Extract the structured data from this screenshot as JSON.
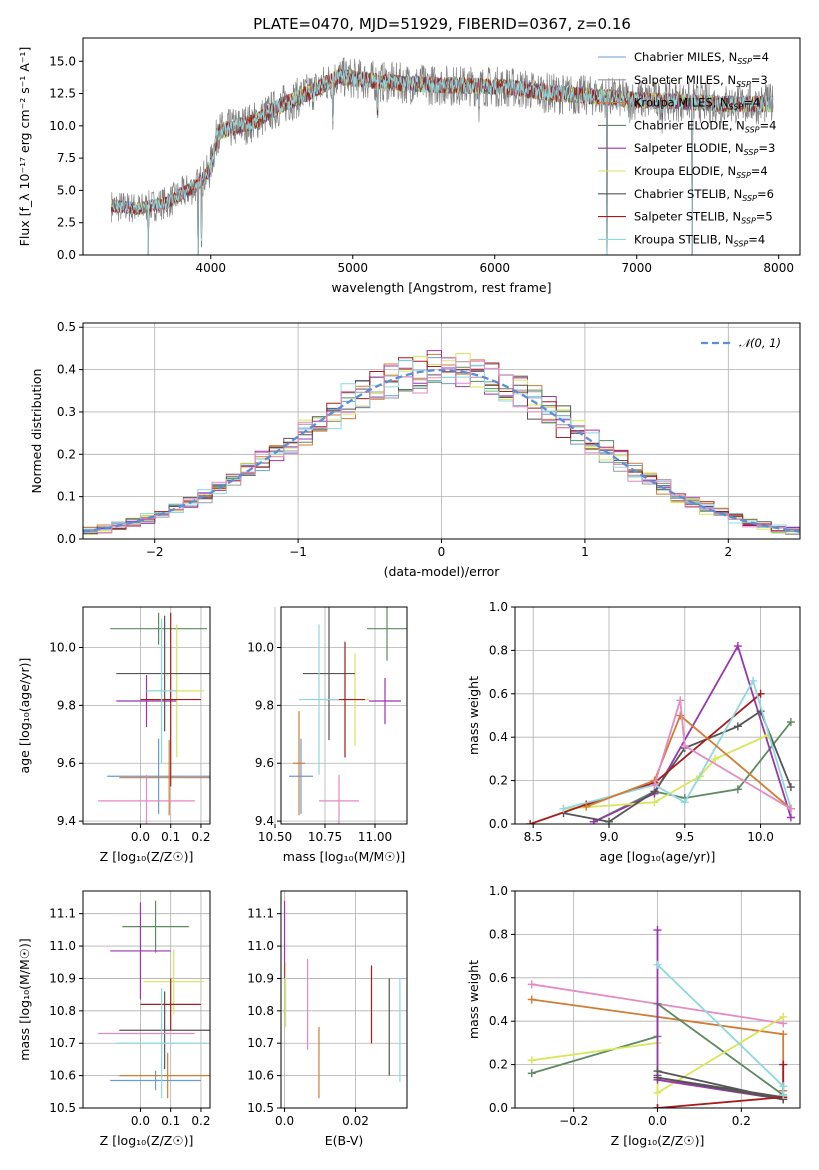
{
  "figure": {
    "title": "PLATE=0470, MJD=51929, FIBERID=0367, z=0.16"
  },
  "colors": {
    "chabrier_miles": "#6a9bd1",
    "salpeter_miles": "#999999",
    "kroupa_miles": "#d17c35",
    "chabrier_elodie": "#5d8a60",
    "salpeter_elodie": "#9a35b0",
    "kroupa_elodie": "#d8e65a",
    "chabrier_stelib": "#555555",
    "salpeter_stelib": "#a71c1c",
    "kroupa_stelib": "#8fd8e0",
    "pink_model": "#e48ac4",
    "gaussian": "#5b8dd9",
    "data": "#808080"
  },
  "legend_spectrum": [
    {
      "label": "Chabrier MILES, N",
      "sub": "SSP",
      "suffix": "=4",
      "color": "#6a9bd1"
    },
    {
      "label": "Salpeter MILES, N",
      "sub": "SSP",
      "suffix": "=3",
      "color": "#999999"
    },
    {
      "label": "Kroupa MILES, N",
      "sub": "SSP",
      "suffix": "=4",
      "color": "#d17c35"
    },
    {
      "label": "Chabrier ELODIE, N",
      "sub": "SSP",
      "suffix": "=4",
      "color": "#5d8a60"
    },
    {
      "label": "Salpeter ELODIE, N",
      "sub": "SSP",
      "suffix": "=3",
      "color": "#9a35b0"
    },
    {
      "label": "Kroupa ELODIE, N",
      "sub": "SSP",
      "suffix": "=4",
      "color": "#d8e65a"
    },
    {
      "label": "Chabrier STELIB, N",
      "sub": "SSP",
      "suffix": "=6",
      "color": "#555555"
    },
    {
      "label": "Salpeter STELIB, N",
      "sub": "SSP",
      "suffix": "=5",
      "color": "#a71c1c"
    },
    {
      "label": "Kroupa STELIB, N",
      "sub": "SSP",
      "suffix": "=4",
      "color": "#8fd8e0"
    }
  ],
  "legend_hist": {
    "label": "𝒩(0, 1)",
    "color": "#5b8dd9"
  },
  "chart_data": [
    {
      "id": "spectrum",
      "type": "line",
      "xlabel": "wavelength [Angstrom, rest frame]",
      "ylabel": "Flux [f_λ 10⁻¹⁷ erg cm⁻² s⁻¹ A⁻¹]",
      "xlim": [
        3100,
        8150
      ],
      "ylim": [
        0,
        16.8
      ],
      "xticks": [
        4000,
        5000,
        6000,
        7000,
        8000
      ],
      "yticks": [
        0.0,
        2.5,
        5.0,
        7.5,
        10.0,
        12.5,
        15.0
      ],
      "x_range_data": [
        3300,
        7960
      ],
      "continuum": [
        [
          3300,
          3.8
        ],
        [
          3500,
          3.6
        ],
        [
          3700,
          4.1
        ],
        [
          3900,
          5.4
        ],
        [
          3990,
          6.5
        ],
        [
          4050,
          9.5
        ],
        [
          4300,
          10.3
        ],
        [
          4500,
          11.6
        ],
        [
          4700,
          12.6
        ],
        [
          4900,
          13.8
        ],
        [
          5200,
          13.4
        ],
        [
          5500,
          13.2
        ],
        [
          5800,
          13.1
        ],
        [
          6100,
          13.0
        ],
        [
          6400,
          12.5
        ],
        [
          6700,
          12.3
        ],
        [
          7000,
          12.0
        ],
        [
          7300,
          11.9
        ],
        [
          7600,
          11.7
        ],
        [
          7960,
          11.7
        ]
      ],
      "dips": [
        [
          3560,
          0
        ],
        [
          3910,
          0
        ],
        [
          3935,
          1.5
        ],
        [
          4860,
          11.0
        ],
        [
          5175,
          11.5
        ],
        [
          5890,
          11.8
        ],
        [
          6790,
          0
        ],
        [
          6950,
          10.8
        ],
        [
          7180,
          11.0
        ],
        [
          7390,
          0
        ]
      ],
      "grid": false,
      "legend": "top-right"
    },
    {
      "id": "residuals",
      "type": "histogram",
      "xlabel": "(data-model)/error",
      "ylabel": "Normed distribution",
      "xlim": [
        -2.5,
        2.5
      ],
      "ylim": [
        0,
        0.51
      ],
      "xticks": [
        -2,
        -1,
        0,
        1,
        2
      ],
      "yticks": [
        0.0,
        0.1,
        0.2,
        0.3,
        0.4,
        0.5
      ],
      "bin_width": 0.1,
      "grid": true,
      "legend": "top-right",
      "reference": "gaussian N(0,1)"
    },
    {
      "id": "age_vs_Z",
      "type": "errorbar",
      "xlabel": "Z [log₁₀(Z/Z☉)]",
      "ylabel": "age  [log₁₀(age/yr)]",
      "xlim": [
        -0.19,
        0.23
      ],
      "ylim": [
        9.39,
        10.14
      ],
      "xticks": [
        0.0,
        0.1,
        0.2
      ],
      "yticks": [
        9.4,
        9.6,
        9.8,
        10.0
      ],
      "points": [
        {
          "x": 0.06,
          "y": 9.555,
          "xerr": [
            0.17,
            0.17
          ],
          "yerr": [
            0.13,
            0.13
          ],
          "color": "#6a9bd1"
        },
        {
          "x": 0.095,
          "y": 9.55,
          "xerr": [
            0.165,
            0.165
          ],
          "yerr": [
            0.13,
            0.13
          ],
          "color": "#d17c35"
        },
        {
          "x": 0.06,
          "y": 10.065,
          "xerr": [
            0.16,
            0.16
          ],
          "yerr": [
            0.055,
            0.055
          ],
          "color": "#5d8a60"
        },
        {
          "x": 0.02,
          "y": 9.815,
          "xerr": [
            0.1,
            0.1
          ],
          "yerr": [
            0.09,
            0.09
          ],
          "color": "#9a35b0"
        },
        {
          "x": 0.12,
          "y": 9.85,
          "xerr": [
            0.09,
            0.09
          ],
          "yerr": [
            0.23,
            0.23
          ],
          "color": "#d8e65a"
        },
        {
          "x": 0.08,
          "y": 9.91,
          "xerr": [
            0.16,
            0.16
          ],
          "yerr": [
            0.2,
            0.2
          ],
          "color": "#555555"
        },
        {
          "x": 0.1,
          "y": 9.82,
          "xerr": [
            0.1,
            0.1
          ],
          "yerr": [
            0.3,
            0.3
          ],
          "color": "#a71c1c"
        },
        {
          "x": 0.07,
          "y": 9.85,
          "xerr": [
            0.05,
            0.05
          ],
          "yerr": [
            0.25,
            0.25
          ],
          "color": "#8fd8e0"
        },
        {
          "x": 0.02,
          "y": 9.47,
          "xerr": [
            0.16,
            0.16
          ],
          "yerr": [
            0.09,
            0.09
          ],
          "color": "#e48ac4"
        }
      ],
      "grid": true
    },
    {
      "id": "age_vs_mass",
      "type": "errorbar",
      "xlabel": "mass [log₁₀(M/M☉)]",
      "ylabel": "",
      "xlim": [
        10.53,
        11.16
      ],
      "ylim": [
        9.39,
        10.14
      ],
      "xticks": [
        10.5,
        10.75,
        11.0
      ],
      "yticks": [
        9.4,
        9.6,
        9.8,
        10.0
      ],
      "points": [
        {
          "x": 10.63,
          "y": 9.555,
          "xerr": [
            0.06,
            0.06
          ],
          "yerr": [
            0.13,
            0.13
          ],
          "color": "#6a9bd1"
        },
        {
          "x": 10.62,
          "y": 9.6,
          "xerr": [
            0.03,
            0.03
          ],
          "yerr": [
            0.18,
            0.18
          ],
          "color": "#d17c35"
        },
        {
          "x": 11.06,
          "y": 10.065,
          "xerr": [
            0.1,
            0.1
          ],
          "yerr": [
            0.11,
            0.11
          ],
          "color": "#5d8a60"
        },
        {
          "x": 11.05,
          "y": 9.815,
          "xerr": [
            0.08,
            0.08
          ],
          "yerr": [
            0.08,
            0.08
          ],
          "color": "#9a35b0"
        },
        {
          "x": 10.9,
          "y": 9.82,
          "xerr": [
            0.07,
            0.07
          ],
          "yerr": [
            0.16,
            0.16
          ],
          "color": "#d8e65a"
        },
        {
          "x": 10.77,
          "y": 9.91,
          "xerr": [
            0.13,
            0.13
          ],
          "yerr": [
            0.23,
            0.23
          ],
          "color": "#555555"
        },
        {
          "x": 10.85,
          "y": 9.82,
          "xerr": [
            0.1,
            0.1
          ],
          "yerr": [
            0.2,
            0.2
          ],
          "color": "#a71c1c"
        },
        {
          "x": 10.72,
          "y": 9.82,
          "xerr": [
            0.1,
            0.1
          ],
          "yerr": [
            0.26,
            0.26
          ],
          "color": "#8fd8e0"
        },
        {
          "x": 10.82,
          "y": 9.47,
          "xerr": [
            0.1,
            0.1
          ],
          "yerr": [
            0.09,
            0.09
          ],
          "color": "#e48ac4"
        }
      ],
      "grid": true
    },
    {
      "id": "weight_vs_age",
      "type": "line",
      "xlabel": "age  [log₁₀(age/yr)]",
      "ylabel": "mass weight",
      "xlim": [
        8.38,
        10.26
      ],
      "ylim": [
        0,
        1.0
      ],
      "xticks": [
        8.5,
        9.0,
        9.5,
        10.0
      ],
      "yticks": [
        0.0,
        0.2,
        0.4,
        0.6,
        0.8,
        1.0
      ],
      "series": [
        {
          "color": "#5d8a60",
          "x": [
            8.9,
            9.3,
            9.5,
            9.85,
            10.2
          ],
          "y": [
            0.01,
            0.15,
            0.12,
            0.16,
            0.47
          ]
        },
        {
          "color": "#9a35b0",
          "x": [
            8.9,
            9.3,
            9.85,
            10.2
          ],
          "y": [
            0.01,
            0.14,
            0.82,
            0.03
          ]
        },
        {
          "color": "#d8e65a",
          "x": [
            8.7,
            9.3,
            9.6,
            9.7,
            10.05
          ],
          "y": [
            0.07,
            0.1,
            0.22,
            0.3,
            0.41
          ]
        },
        {
          "color": "#555555",
          "x": [
            8.7,
            9.0,
            9.3,
            9.5,
            9.85,
            10.0,
            10.2
          ],
          "y": [
            0.05,
            0.01,
            0.15,
            0.35,
            0.45,
            0.52,
            0.17
          ]
        },
        {
          "color": "#a71c1c",
          "x": [
            8.48,
            8.85,
            9.3,
            10.0
          ],
          "y": [
            0.0,
            0.09,
            0.19,
            0.6
          ]
        },
        {
          "color": "#8fd8e0",
          "x": [
            8.7,
            9.3,
            9.5,
            9.95,
            10.2
          ],
          "y": [
            0.07,
            0.18,
            0.1,
            0.66,
            0.07
          ]
        },
        {
          "color": "#d17c35",
          "x": [
            8.85,
            9.3,
            9.47,
            10.2
          ],
          "y": [
            0.08,
            0.2,
            0.5,
            0.07
          ]
        },
        {
          "color": "#e48ac4",
          "x": [
            9.3,
            9.47,
            9.5,
            10.2
          ],
          "y": [
            0.18,
            0.57,
            0.36,
            0.07
          ]
        }
      ],
      "grid": true
    },
    {
      "id": "mass_vs_Z",
      "type": "errorbar",
      "xlabel": "Z [log₁₀(Z/Z☉)]",
      "ylabel": "mass [log₁₀(M/M☉)]",
      "xlim": [
        -0.19,
        0.23
      ],
      "ylim": [
        10.5,
        11.17
      ],
      "xticks": [
        0.0,
        0.1,
        0.2
      ],
      "yticks": [
        10.5,
        10.6,
        10.7,
        10.8,
        10.9,
        11.0,
        11.1
      ],
      "points": [
        {
          "x": 0.05,
          "y": 10.585,
          "xerr": [
            0.15,
            0.15
          ],
          "yerr": [
            0.03,
            0.03
          ],
          "color": "#6a9bd1"
        },
        {
          "x": 0.09,
          "y": 10.6,
          "xerr": [
            0.16,
            0.16
          ],
          "yerr": [
            0.07,
            0.07
          ],
          "color": "#d17c35"
        },
        {
          "x": 0.05,
          "y": 11.06,
          "xerr": [
            0.11,
            0.11
          ],
          "yerr": [
            0.08,
            0.08
          ],
          "color": "#5d8a60"
        },
        {
          "x": 0.0,
          "y": 10.985,
          "xerr": [
            0.1,
            0.1
          ],
          "yerr": [
            0.15,
            0.15
          ],
          "color": "#9a35b0"
        },
        {
          "x": 0.11,
          "y": 10.89,
          "xerr": [
            0.1,
            0.1
          ],
          "yerr": [
            0.1,
            0.1
          ],
          "color": "#d8e65a"
        },
        {
          "x": 0.08,
          "y": 10.74,
          "xerr": [
            0.15,
            0.15
          ],
          "yerr": [
            0.12,
            0.12
          ],
          "color": "#555555"
        },
        {
          "x": 0.1,
          "y": 10.82,
          "xerr": [
            0.1,
            0.1
          ],
          "yerr": [
            0.08,
            0.08
          ],
          "color": "#a71c1c"
        },
        {
          "x": 0.07,
          "y": 10.7,
          "xerr": [
            0.15,
            0.15
          ],
          "yerr": [
            0.17,
            0.17
          ],
          "color": "#8fd8e0"
        },
        {
          "x": 0.02,
          "y": 10.73,
          "xerr": [
            0.16,
            0.16
          ],
          "yerr": [
            0.0,
            0.0
          ],
          "color": "#e48ac4"
        }
      ],
      "grid": true
    },
    {
      "id": "mass_vs_ebv",
      "type": "errorbar",
      "xlabel": "E(B-V)",
      "ylabel": "",
      "xlim": [
        -0.001,
        0.0345
      ],
      "ylim": [
        10.5,
        11.17
      ],
      "xticks": [
        0.0,
        0.02
      ],
      "yticks": [
        10.5,
        10.6,
        10.7,
        10.8,
        10.9,
        11.0,
        11.1
      ],
      "points": [
        {
          "x": 0.0,
          "y": 11.02,
          "yerr": [
            0.12,
            0.12
          ],
          "color": "#9a35b0"
        },
        {
          "x": 0.0003,
          "y": 10.85,
          "yerr": [
            0.1,
            0.1
          ],
          "color": "#d8e65a"
        },
        {
          "x": 0.0065,
          "y": 10.82,
          "yerr": [
            0.14,
            0.14
          ],
          "color": "#e48ac4"
        },
        {
          "x": 0.0097,
          "y": 10.64,
          "yerr": [
            0.11,
            0.11
          ],
          "color": "#d17c35"
        },
        {
          "x": 0.0245,
          "y": 10.82,
          "yerr": [
            0.12,
            0.12
          ],
          "color": "#a71c1c"
        },
        {
          "x": 0.0295,
          "y": 10.75,
          "yerr": [
            0.15,
            0.15
          ],
          "color": "#555555"
        },
        {
          "x": 0.0325,
          "y": 10.74,
          "yerr": [
            0.16,
            0.16
          ],
          "color": "#8fd8e0"
        }
      ],
      "grid": true
    },
    {
      "id": "weight_vs_Z",
      "type": "line",
      "xlabel": "Z [log₁₀(Z/Z☉)]",
      "ylabel": "mass weight",
      "xlim": [
        -0.34,
        0.34
      ],
      "ylim": [
        0,
        1.0
      ],
      "xticks": [
        -0.2,
        0.0,
        0.2
      ],
      "yticks": [
        0.0,
        0.2,
        0.4,
        0.6,
        0.8,
        1.0
      ],
      "series": [
        {
          "color": "#e48ac4",
          "x": [
            -0.3,
            0.3
          ],
          "y": [
            0.57,
            0.39
          ]
        },
        {
          "color": "#d17c35",
          "x": [
            -0.3,
            0.3,
            0.3
          ],
          "y": [
            0.5,
            0.34,
            0.08
          ]
        },
        {
          "color": "#5d8a60",
          "x": [
            -0.3,
            0.0,
            0.0,
            0.3
          ],
          "y": [
            0.16,
            0.33,
            0.48,
            0.06
          ]
        },
        {
          "color": "#d8e65a",
          "x": [
            -0.3,
            0.0,
            0.0,
            0.3
          ],
          "y": [
            0.22,
            0.3,
            0.07,
            0.42
          ]
        },
        {
          "color": "#9a35b0",
          "x": [
            0.0,
            0.0,
            0.0,
            0.3
          ],
          "y": [
            0.82,
            0.15,
            0.13,
            0.04
          ]
        },
        {
          "color": "#555555",
          "x": [
            0.0,
            0.3,
            0.0,
            0.3
          ],
          "y": [
            0.17,
            0.04,
            0.14,
            0.05
          ]
        },
        {
          "color": "#a71c1c",
          "x": [
            0.0,
            0.0,
            0.3,
            0.3
          ],
          "y": [
            0.0,
            0.0,
            0.05,
            0.2
          ]
        },
        {
          "color": "#8fd8e0",
          "x": [
            0.0,
            0.3,
            0.3
          ],
          "y": [
            0.66,
            0.1,
            0.06
          ]
        }
      ],
      "grid": true
    }
  ]
}
